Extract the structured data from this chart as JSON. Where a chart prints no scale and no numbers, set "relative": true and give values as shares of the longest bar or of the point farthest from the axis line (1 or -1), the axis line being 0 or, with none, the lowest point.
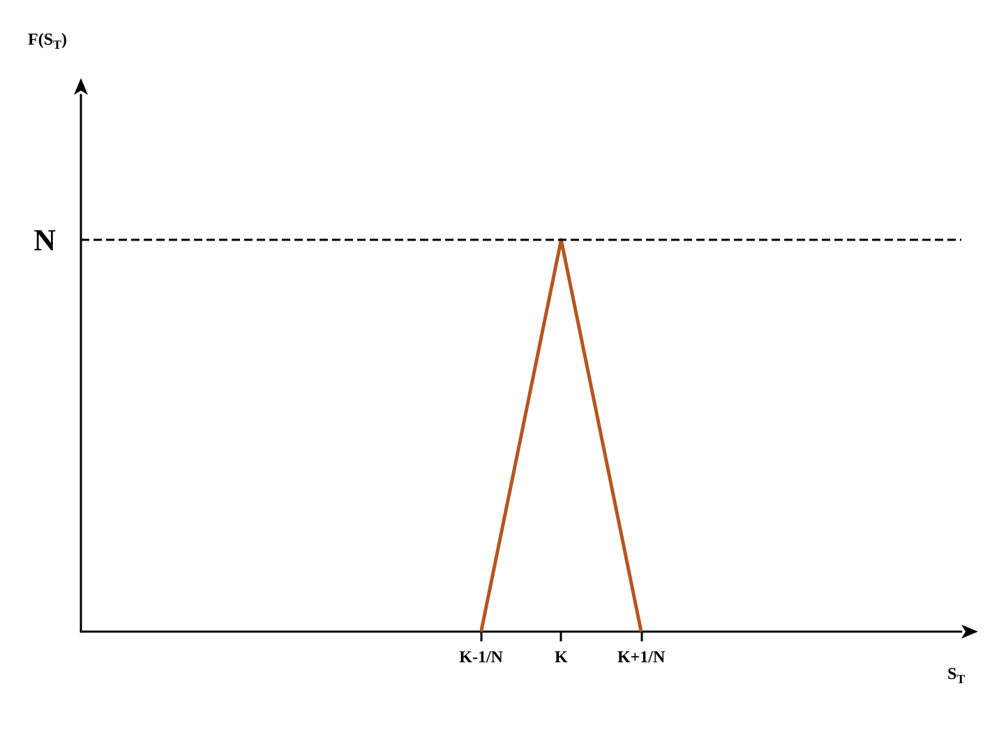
{
  "chart_data": {
    "type": "line",
    "relative": true,
    "xlabel": "S$_{T}$",
    "annotations": [
      "F(S$_{T}$)"
    ],
    "categories": [
      null,
      null,
      null,
      null,
      null,
      "K-1/N",
      "K",
      "K+1/N",
      null,
      null,
      null,
      null
    ],
    "series": [
      {
        "color": "#b5561e",
        "values": [
          null,
          null,
          null,
          null,
          null,
          0,
          1,
          0,
          null,
          null,
          null,
          null
        ]
      }
    ],
    "ref_lines": [
      {
        "axis": "y",
        "value": 1,
        "label": "N",
        "line_style": "dashed",
        "color": "#000000"
      }
    ]
  }
}
